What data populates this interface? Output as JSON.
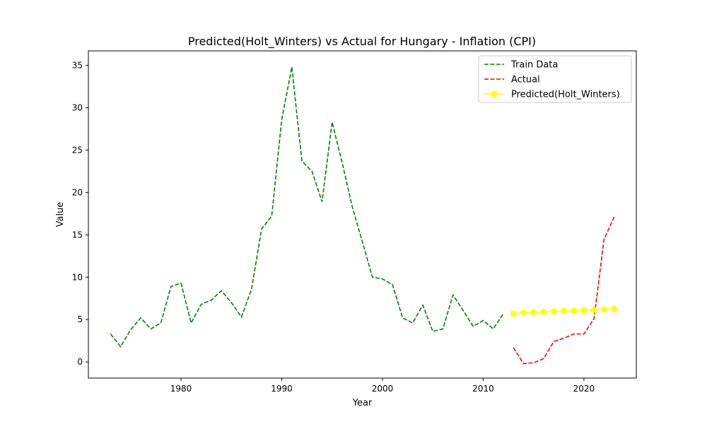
{
  "chart_data": {
    "type": "line",
    "title": "Predicted(Holt_Winters) vs Actual for Hungary - Inflation (CPI)",
    "xlabel": "Year",
    "ylabel": "Value",
    "xlim": [
      1970.8,
      2025.2
    ],
    "ylim": [
      -1.9,
      36.7
    ],
    "xticks": [
      1980,
      1990,
      2000,
      2010,
      2020
    ],
    "yticks": [
      0,
      5,
      10,
      15,
      20,
      25,
      30,
      35
    ],
    "legend_position": "top-right",
    "series": [
      {
        "name": "Train Data",
        "color": "#008000",
        "style": "dashed",
        "x": [
          1973,
          1974,
          1975,
          1976,
          1977,
          1978,
          1979,
          1980,
          1981,
          1982,
          1983,
          1984,
          1985,
          1986,
          1987,
          1988,
          1989,
          1990,
          1991,
          1992,
          1993,
          1994,
          1995,
          1996,
          1997,
          1998,
          1999,
          2000,
          2001,
          2002,
          2003,
          2004,
          2005,
          2006,
          2007,
          2008,
          2009,
          2010,
          2011,
          2012
        ],
        "y": [
          3.3,
          1.8,
          3.8,
          5.2,
          3.9,
          4.6,
          8.9,
          9.3,
          4.6,
          6.8,
          7.3,
          8.4,
          7.0,
          5.3,
          8.6,
          15.7,
          17.2,
          28.6,
          34.8,
          23.7,
          22.5,
          18.9,
          28.3,
          23.5,
          18.3,
          14.2,
          10.0,
          9.8,
          9.1,
          5.2,
          4.6,
          6.7,
          3.6,
          3.9,
          7.9,
          6.1,
          4.2,
          4.9,
          3.9,
          5.7
        ]
      },
      {
        "name": "Actual",
        "color": "#ff0000",
        "style": "dashed",
        "x": [
          2013,
          2014,
          2015,
          2016,
          2017,
          2018,
          2019,
          2020,
          2021,
          2022,
          2023
        ],
        "y": [
          1.7,
          -0.2,
          -0.1,
          0.4,
          2.4,
          2.8,
          3.3,
          3.3,
          5.1,
          14.5,
          17.1
        ]
      },
      {
        "name": "Predicted(Holt_Winters)",
        "color": "#ffff00",
        "style": "solid-marker",
        "x": [
          2013,
          2014,
          2015,
          2016,
          2017,
          2018,
          2019,
          2020,
          2021,
          2022,
          2023
        ],
        "y": [
          5.7,
          5.8,
          5.85,
          5.9,
          5.95,
          6.0,
          6.05,
          6.1,
          6.15,
          6.2,
          6.25
        ]
      }
    ]
  }
}
